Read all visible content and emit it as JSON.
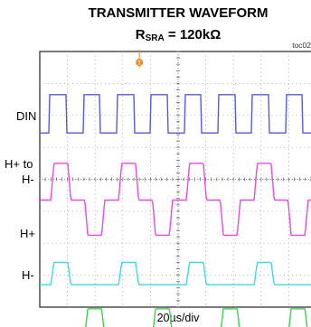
{
  "chart_data": {
    "type": "line",
    "title": "TRANSMITTER WAVEFORM",
    "subtitle_prefix": "R",
    "subtitle_sub": "SRA",
    "subtitle_suffix": " = 120kΩ",
    "figure_id": "toc02",
    "xlabel": "20µs/div",
    "grid": true,
    "divisions": {
      "x": 10,
      "y": 8
    },
    "trigger_marker": "T",
    "channels": [
      {
        "label": "DIN",
        "color": "#5a5ad2",
        "waveform": "square",
        "period_div": 1.22,
        "offset_div": 0.35
      },
      {
        "label_line1": "H+ to",
        "label_line2": "H-",
        "color": "#e84ae0",
        "waveform": "bipolar-three-level",
        "period_div": 2.45,
        "offset_div": 0.4
      },
      {
        "label": "H+",
        "color": "#3fd8e6",
        "waveform": "two-level",
        "period_div": 2.45,
        "offset_div": 0.4
      },
      {
        "label": "H-",
        "color": "#3ed04c",
        "waveform": "two-level-inverted",
        "period_div": 2.45,
        "offset_div": 0.4
      }
    ]
  }
}
